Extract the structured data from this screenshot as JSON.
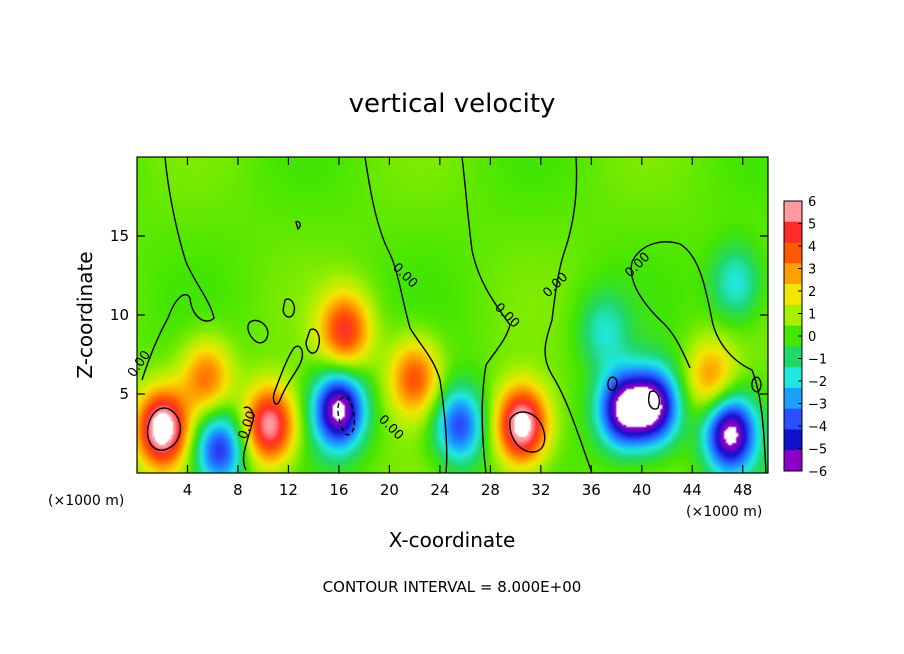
{
  "chart_data": {
    "type": "heatmap",
    "title": "vertical velocity",
    "xlabel": "X-coordinate",
    "ylabel": "Z-coordinate",
    "x_unit_left": "(×1000 m)",
    "x_unit_right": "(×1000 m)",
    "footer": "CONTOUR INTERVAL = 8.000E+00",
    "xlim": [
      0,
      50
    ],
    "ylim": [
      0,
      20
    ],
    "x_ticks": [
      4,
      8,
      12,
      16,
      20,
      24,
      28,
      32,
      36,
      40,
      44,
      48
    ],
    "x_tick_labels": [
      "4",
      "8",
      "12",
      "16",
      "20",
      "24",
      "28",
      "32",
      "36",
      "40",
      "44",
      "48"
    ],
    "y_ticks": [
      5,
      10,
      15
    ],
    "y_tick_labels": [
      "5",
      "10",
      "15"
    ],
    "contour_labels": [
      "0.00",
      "0.00",
      "0.00",
      "0.00",
      "0.00",
      "0.00",
      "0.00"
    ],
    "colorbar": {
      "min": -6,
      "max": 6,
      "tick_labels": [
        "6",
        "5",
        "4",
        "3",
        "2",
        "1",
        "0",
        "−1",
        "−2",
        "−3",
        "−4",
        "−5",
        "−6"
      ],
      "colors": [
        "#ff9aa0",
        "#ff2b2b",
        "#ff5a00",
        "#ffa000",
        "#f3e600",
        "#a8f000",
        "#44e600",
        "#20d86a",
        "#20e8e0",
        "#1aa0ff",
        "#2a50ff",
        "#1010c8",
        "#8a00c8"
      ]
    },
    "field_features": [
      {
        "kind": "updraft",
        "x": 2.0,
        "z": 2.8,
        "strength": 7
      },
      {
        "kind": "updraft",
        "x": 10.5,
        "z": 3.0,
        "strength": 6
      },
      {
        "kind": "updraft",
        "x": 30.5,
        "z": 3.0,
        "strength": 7
      },
      {
        "kind": "updraft",
        "x": 16.5,
        "z": 9.0,
        "strength": 4.5
      },
      {
        "kind": "updraft",
        "x": 22.0,
        "z": 6.0,
        "strength": 4
      },
      {
        "kind": "updraft",
        "x": 5.5,
        "z": 6.0,
        "strength": 3.5
      },
      {
        "kind": "updraft",
        "x": 45.5,
        "z": 6.0,
        "strength": 3
      },
      {
        "kind": "downdraft",
        "x": 16.0,
        "z": 4.0,
        "strength": -7
      },
      {
        "kind": "downdraft",
        "x": 6.5,
        "z": 1.5,
        "strength": -5
      },
      {
        "kind": "downdraft",
        "x": 25.5,
        "z": 3.0,
        "strength": -4.5
      },
      {
        "kind": "downdraft",
        "x": 38.5,
        "z": 4.0,
        "strength": -6.5
      },
      {
        "kind": "downdraft",
        "x": 41.0,
        "z": 4.2,
        "strength": -6.5
      },
      {
        "kind": "downdraft",
        "x": 47.0,
        "z": 2.5,
        "strength": -7
      },
      {
        "kind": "downdraft",
        "x": 47.5,
        "z": 12.0,
        "strength": -2.5
      },
      {
        "kind": "downdraft",
        "x": 37.0,
        "z": 9.0,
        "strength": -2
      }
    ]
  }
}
